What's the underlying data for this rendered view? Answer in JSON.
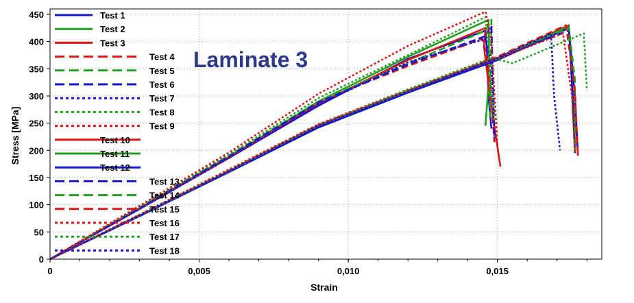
{
  "chart_data": {
    "type": "line",
    "title": "Laminate 3",
    "xlabel": "Strain",
    "ylabel": "Stress [MPa]",
    "xlim": [
      0,
      0.0185
    ],
    "ylim": [
      0,
      460
    ],
    "x_ticks": [
      0,
      0.005,
      0.01,
      0.015
    ],
    "x_tick_labels": [
      "0",
      "0,005",
      "0,010",
      "0,015"
    ],
    "y_ticks": [
      0,
      50,
      100,
      150,
      200,
      250,
      300,
      350,
      400,
      450
    ],
    "y_tick_labels": [
      "0",
      "50",
      "100",
      "150",
      "200",
      "250",
      "300",
      "350",
      "400",
      "450"
    ],
    "grid": "dotted",
    "legend_position": "top-left",
    "series": [
      {
        "name": "Test 1",
        "color": "#1515d0",
        "dash": "solid",
        "x": [
          0,
          0.003,
          0.006,
          0.009,
          0.012,
          0.0146,
          0.01465,
          0.0147,
          0.0148
        ],
        "y": [
          0,
          92,
          186,
          282,
          368,
          420,
          380,
          300,
          240
        ]
      },
      {
        "name": "Test 2",
        "color": "#20a020",
        "dash": "solid",
        "x": [
          0,
          0.003,
          0.006,
          0.009,
          0.012,
          0.0147,
          0.01472,
          0.0147,
          0.0146
        ],
        "y": [
          0,
          94,
          188,
          290,
          372,
          440,
          400,
          320,
          245
        ]
      },
      {
        "name": "Test 3",
        "color": "#dd1515",
        "dash": "solid",
        "x": [
          0,
          0.003,
          0.006,
          0.009,
          0.012,
          0.0146,
          0.01455,
          0.0148,
          0.0151
        ],
        "y": [
          0,
          93,
          187,
          286,
          366,
          425,
          390,
          280,
          170
        ]
      },
      {
        "name": "Test 4",
        "color": "#dd1515",
        "dash": "dashed",
        "x": [
          0,
          0.003,
          0.006,
          0.009,
          0.012,
          0.0145,
          0.0147,
          0.0149
        ],
        "y": [
          0,
          95,
          190,
          290,
          355,
          405,
          360,
          215
        ]
      },
      {
        "name": "Test 5",
        "color": "#20a020",
        "dash": "dashed",
        "x": [
          0,
          0.003,
          0.006,
          0.009,
          0.012,
          0.0146,
          0.0148,
          0.01475
        ],
        "y": [
          0,
          95,
          190,
          290,
          360,
          420,
          440,
          260
        ]
      },
      {
        "name": "Test 6",
        "color": "#1515d0",
        "dash": "dashed",
        "x": [
          0,
          0.003,
          0.006,
          0.009,
          0.012,
          0.0146,
          0.0148,
          0.0149
        ],
        "y": [
          0,
          94,
          189,
          288,
          358,
          410,
          430,
          225
        ]
      },
      {
        "name": "Test 7",
        "color": "#1515d0",
        "dash": "dotted",
        "x": [
          0,
          0.003,
          0.006,
          0.009,
          0.012,
          0.0146,
          0.0148,
          0.0149
        ],
        "y": [
          0,
          92,
          186,
          284,
          362,
          405,
          360,
          220
        ]
      },
      {
        "name": "Test 8",
        "color": "#20a020",
        "dash": "dotted",
        "x": [
          0,
          0.003,
          0.006,
          0.009,
          0.012,
          0.0146,
          0.0147,
          0.0149
        ],
        "y": [
          0,
          96,
          192,
          296,
          375,
          445,
          390,
          250
        ]
      },
      {
        "name": "Test 9",
        "color": "#dd1515",
        "dash": "dotted",
        "x": [
          0,
          0.003,
          0.006,
          0.009,
          0.012,
          0.0146,
          0.0148,
          0.015
        ],
        "y": [
          0,
          98,
          196,
          304,
          392,
          455,
          400,
          210
        ]
      },
      {
        "name": "Test 10",
        "color": "#dd1515",
        "dash": "solid",
        "x": [
          0,
          0.003,
          0.006,
          0.009,
          0.012,
          0.015,
          0.0174,
          0.0175,
          0.0177
        ],
        "y": [
          0,
          80,
          162,
          246,
          310,
          370,
          430,
          330,
          190
        ]
      },
      {
        "name": "Test 11",
        "color": "#20a020",
        "dash": "solid",
        "x": [
          0,
          0.003,
          0.006,
          0.009,
          0.012,
          0.015,
          0.0174,
          0.0175,
          0.0176
        ],
        "y": [
          0,
          80,
          161,
          244,
          308,
          368,
          428,
          330,
          200
        ]
      },
      {
        "name": "Test 12",
        "color": "#1515d0",
        "dash": "solid",
        "x": [
          0,
          0.003,
          0.006,
          0.009,
          0.012,
          0.015,
          0.0174,
          0.0175,
          0.0176
        ],
        "y": [
          0,
          79,
          160,
          242,
          306,
          366,
          425,
          320,
          195
        ]
      },
      {
        "name": "Test 13",
        "color": "#1515d0",
        "dash": "dashed",
        "x": [
          0,
          0.003,
          0.006,
          0.009,
          0.012,
          0.015,
          0.0174,
          0.0176,
          0.0177
        ],
        "y": [
          0,
          80,
          161,
          245,
          308,
          370,
          420,
          300,
          195
        ]
      },
      {
        "name": "Test 14",
        "color": "#20a020",
        "dash": "dashed",
        "x": [
          0,
          0.003,
          0.006,
          0.009,
          0.012,
          0.015,
          0.0174,
          0.0176,
          0.0176
        ],
        "y": [
          0,
          80,
          162,
          246,
          309,
          372,
          425,
          330,
          200
        ]
      },
      {
        "name": "Test 15",
        "color": "#dd1515",
        "dash": "dashed",
        "x": [
          0,
          0.003,
          0.006,
          0.009,
          0.012,
          0.015,
          0.0173,
          0.0176,
          0.0177
        ],
        "y": [
          0,
          81,
          163,
          247,
          310,
          372,
          430,
          310,
          190
        ]
      },
      {
        "name": "Test 16",
        "color": "#dd1515",
        "dash": "dotted",
        "x": [
          0,
          0.003,
          0.006,
          0.009,
          0.012,
          0.015,
          0.0172,
          0.0175,
          0.0176
        ],
        "y": [
          0,
          82,
          165,
          248,
          312,
          368,
          415,
          300,
          195
        ]
      },
      {
        "name": "Test 17",
        "color": "#20a020",
        "dash": "dotted",
        "x": [
          0,
          0.003,
          0.006,
          0.009,
          0.012,
          0.0148,
          0.0155,
          0.0179,
          0.018
        ],
        "y": [
          0,
          81,
          163,
          246,
          312,
          370,
          360,
          415,
          310
        ]
      },
      {
        "name": "Test 18",
        "color": "#1515d0",
        "dash": "dotted",
        "x": [
          0,
          0.003,
          0.006,
          0.009,
          0.012,
          0.015,
          0.0168,
          0.0169,
          0.0171
        ],
        "y": [
          0,
          80,
          162,
          245,
          308,
          370,
          415,
          300,
          200
        ]
      }
    ]
  }
}
